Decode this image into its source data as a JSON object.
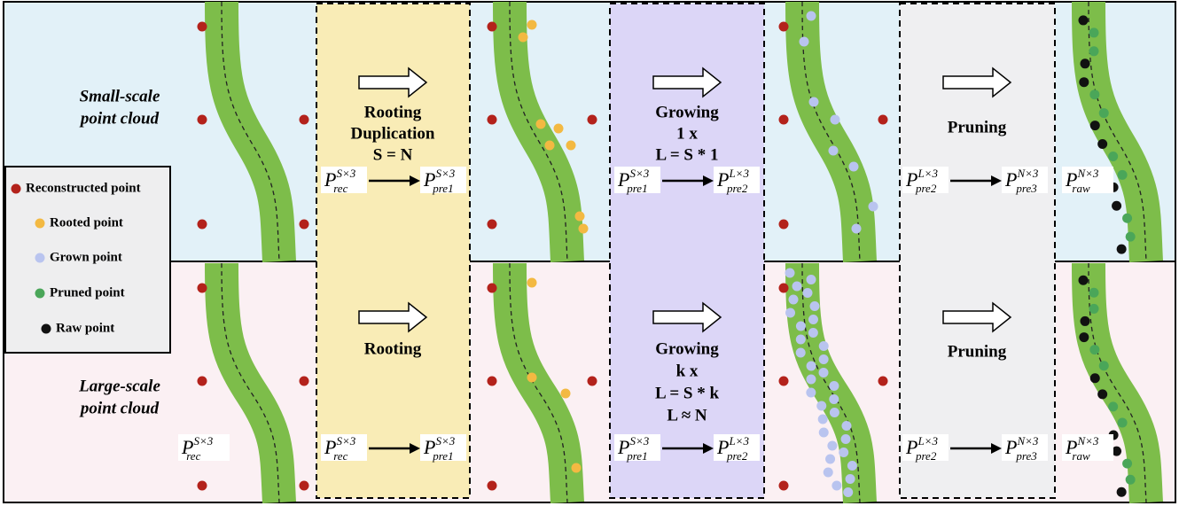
{
  "legend": [
    "Reconstructed point",
    "Rooted point",
    "Grown point",
    "Pruned point",
    "Raw point"
  ],
  "rows": [
    {
      "label": [
        "Small-scale",
        "point cloud"
      ],
      "stages": [
        {
          "lines": [
            "Rooting",
            "Duplication",
            "S = N"
          ]
        },
        {
          "lines": [
            "Growing",
            "1 x",
            "L = S * 1"
          ]
        },
        {
          "lines": [
            "Pruning"
          ]
        }
      ],
      "flows": [
        {
          "from": {
            "base": "P",
            "sub": "rec",
            "sup": "S×3"
          },
          "to": {
            "base": "P",
            "sub": "pre1",
            "sup": "S×3"
          }
        },
        {
          "from": {
            "base": "P",
            "sub": "pre1",
            "sup": "S×3"
          },
          "to": {
            "base": "P",
            "sub": "pre2",
            "sup": "L×3"
          }
        },
        {
          "from": {
            "base": "P",
            "sub": "pre2",
            "sup": "L×3"
          },
          "to": {
            "base": "P",
            "sub": "pre3",
            "sup": "N×3"
          }
        }
      ],
      "raw": {
        "base": "P",
        "sub": "raw",
        "sup": "N×3"
      }
    },
    {
      "label": [
        "Large-scale",
        "point cloud"
      ],
      "stages": [
        {
          "lines": [
            "Rooting"
          ]
        },
        {
          "lines": [
            "Growing",
            "k x",
            "L = S * k",
            "L ≈ N"
          ]
        },
        {
          "lines": [
            "Pruning"
          ]
        }
      ],
      "flows": [
        {
          "from": {
            "base": "P",
            "sub": "rec",
            "sup": "S×3"
          },
          "to": {
            "base": "P",
            "sub": "pre1",
            "sup": "S×3"
          }
        },
        {
          "from": {
            "base": "P",
            "sub": "pre1",
            "sup": "S×3"
          },
          "to": {
            "base": "P",
            "sub": "pre2",
            "sup": "L×3"
          }
        },
        {
          "from": {
            "base": "P",
            "sub": "pre2",
            "sup": "L×3"
          },
          "to": {
            "base": "P",
            "sub": "pre3",
            "sup": "N×3"
          }
        }
      ],
      "rec": {
        "base": "P",
        "sub": "rec",
        "sup": "S×3"
      },
      "raw": {
        "base": "P",
        "sub": "raw",
        "sup": "N×3"
      }
    }
  ]
}
